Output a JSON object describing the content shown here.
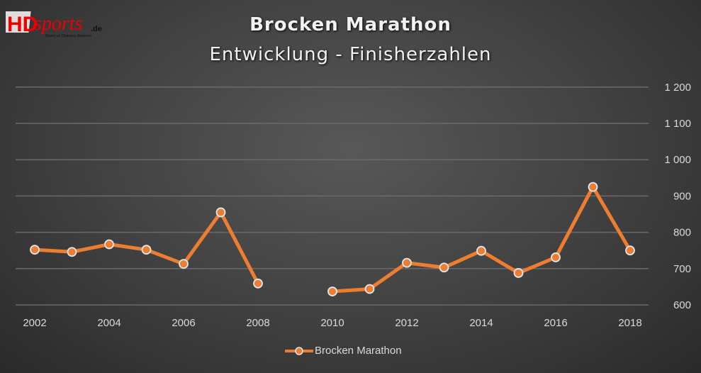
{
  "logo": {
    "text": "HDsports.de",
    "tagline": "Home of Distance Runners"
  },
  "chart_data": {
    "type": "line",
    "title": "Brocken Marathon",
    "subtitle": "Entwicklung - Finisherzahlen",
    "x": [
      2002,
      2003,
      2004,
      2005,
      2006,
      2007,
      2008,
      2009,
      2010,
      2011,
      2012,
      2013,
      2014,
      2015,
      2016,
      2017,
      2018
    ],
    "x_tick_labels": [
      "2002",
      "2004",
      "2006",
      "2008",
      "2010",
      "2012",
      "2014",
      "2016",
      "2018"
    ],
    "y_tick_labels": [
      "600",
      "700",
      "800",
      "900",
      "1 000",
      "1 100",
      "1 200"
    ],
    "y_ticks": [
      600,
      700,
      800,
      900,
      1000,
      1100,
      1200
    ],
    "ylim": [
      600,
      1200
    ],
    "y_axis_side": "right",
    "grid": true,
    "legend_placement": "bottom",
    "series": [
      {
        "name": "Brocken Marathon",
        "color": "#ed7d31",
        "values": [
          752,
          746,
          767,
          752,
          713,
          855,
          659,
          null,
          637,
          644,
          716,
          703,
          749,
          688,
          731,
          925,
          750
        ]
      }
    ]
  }
}
